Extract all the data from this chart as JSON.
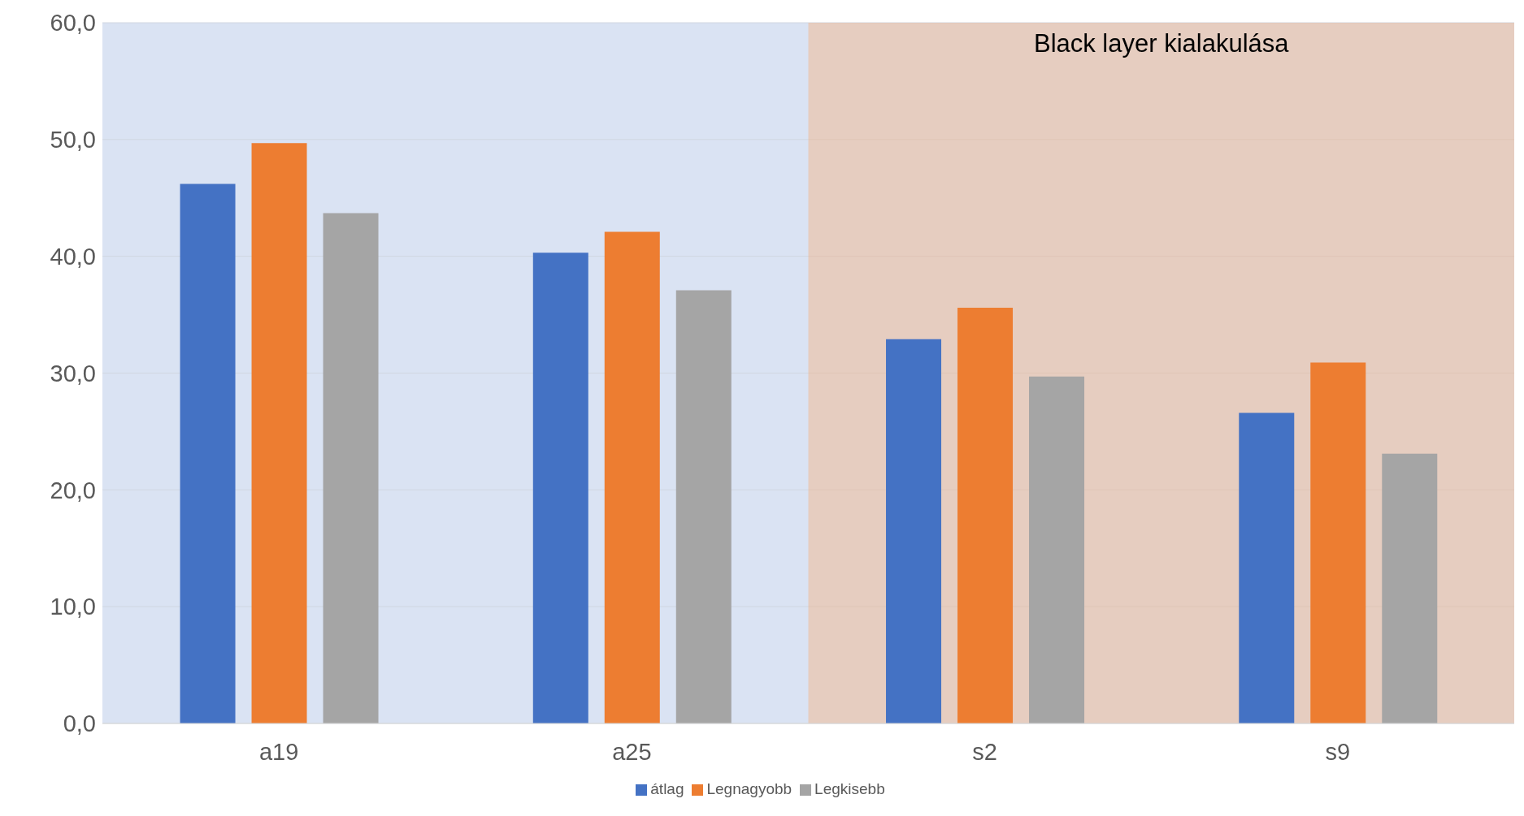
{
  "chart_data": {
    "type": "bar",
    "categories": [
      "a19",
      "a25",
      "s2",
      "s9"
    ],
    "series": [
      {
        "name": "átlag",
        "color": "#4472c4",
        "values": [
          46.2,
          40.3,
          32.9,
          26.6
        ]
      },
      {
        "name": "Legnagyobb",
        "color": "#ed7d31",
        "values": [
          49.7,
          42.1,
          35.6,
          30.9
        ]
      },
      {
        "name": "Legkisebb",
        "color": "#a5a5a5",
        "values": [
          43.7,
          37.1,
          29.7,
          23.1
        ]
      }
    ],
    "ylim": [
      0,
      60
    ],
    "yticks": [
      {
        "value": 0,
        "label": "0,0"
      },
      {
        "value": 10,
        "label": "10,0"
      },
      {
        "value": 20,
        "label": "20,0"
      },
      {
        "value": 30,
        "label": "30,0"
      },
      {
        "value": 40,
        "label": "40,0"
      },
      {
        "value": 50,
        "label": "50,0"
      },
      {
        "value": 60,
        "label": "60,0"
      }
    ],
    "grid": "y",
    "legend": "bottom",
    "bands": [
      {
        "axis": "x",
        "from": "s2",
        "to": "s9",
        "label": "Black layer kialakulása",
        "color": "#f4b183"
      }
    ]
  }
}
